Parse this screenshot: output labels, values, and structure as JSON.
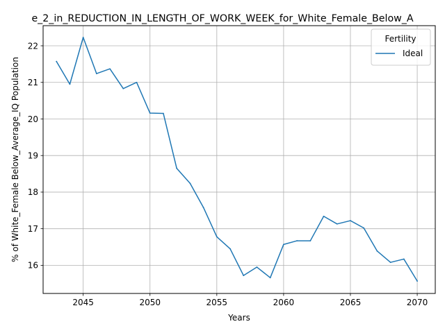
{
  "chart_data": {
    "type": "line",
    "title": "e_2_in_REDUCTION_IN_LENGTH_OF_WORK_WEEK_for_White_Female_Below_A",
    "xlabel": "Years",
    "ylabel": "% of White_Female Below_Average_IQ Population",
    "xlim": [
      2042.0,
      2071.35
    ],
    "ylim": [
      15.23,
      22.55
    ],
    "xticks": [
      2045,
      2050,
      2055,
      2060,
      2065,
      2070
    ],
    "xtick_labels": [
      "2045",
      "2050",
      "2055",
      "2060",
      "2065",
      "2070"
    ],
    "yticks": [
      16,
      17,
      18,
      19,
      20,
      21,
      22
    ],
    "ytick_labels": [
      "16",
      "17",
      "18",
      "19",
      "20",
      "21",
      "22"
    ],
    "grid": true,
    "legend": {
      "title": "Fertility",
      "placement": "top-right"
    },
    "series": [
      {
        "name": "Ideal",
        "color": "#1f77b4",
        "x": [
          2043,
          2044,
          2045,
          2046,
          2047,
          2048,
          2049,
          2050,
          2051,
          2052,
          2053,
          2054,
          2055,
          2056,
          2057,
          2058,
          2059,
          2060,
          2061,
          2062,
          2063,
          2064,
          2065,
          2066,
          2067,
          2068,
          2069,
          2070
        ],
        "values": [
          21.57,
          20.95,
          22.23,
          21.24,
          21.37,
          20.83,
          21.0,
          20.16,
          20.15,
          18.65,
          18.24,
          17.58,
          16.78,
          16.45,
          15.72,
          15.95,
          15.66,
          16.57,
          16.67,
          16.67,
          17.34,
          17.13,
          17.22,
          17.02,
          16.39,
          16.08,
          16.17,
          15.57
        ]
      }
    ]
  }
}
